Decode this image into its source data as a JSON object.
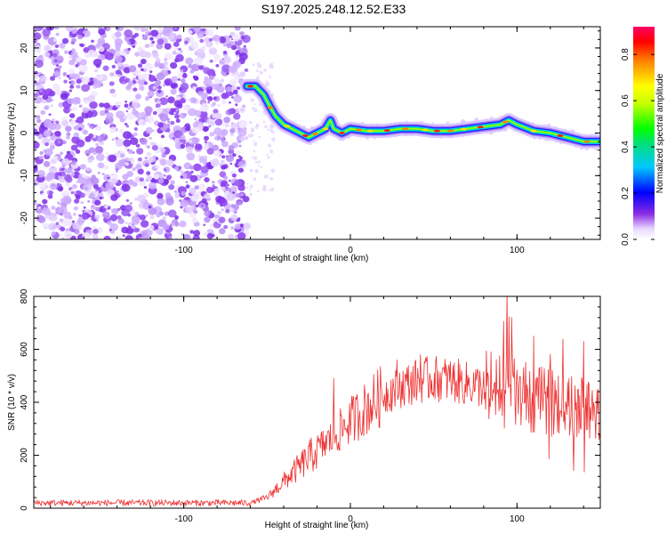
{
  "page": {
    "title": "S197.2025.248.12.52.E33"
  },
  "chart_data": [
    {
      "type": "heatmap",
      "name": "spectrogram",
      "xlabel": "Height of straight line (km)",
      "ylabel": "Frequency (Hz)",
      "xlim": [
        -190,
        150
      ],
      "ylim": [
        -25,
        25
      ],
      "x_ticks": [
        -100,
        0,
        100
      ],
      "y_ticks": [
        -20,
        -10,
        0,
        10,
        20
      ],
      "noise_region_x": [
        -190,
        -62
      ],
      "ridge": {
        "x": [
          -62,
          -57,
          -52,
          -48,
          -45,
          -40,
          -35,
          -30,
          -25,
          -20,
          -15,
          -12,
          -10,
          -5,
          0,
          10,
          20,
          30,
          40,
          50,
          60,
          70,
          80,
          90,
          95,
          100,
          110,
          120,
          130,
          140,
          150
        ],
        "y": [
          11,
          11,
          9,
          6,
          4,
          2,
          1,
          0,
          -1,
          0,
          1,
          3,
          1,
          0,
          1,
          0.5,
          0.5,
          1,
          1,
          0.5,
          0.5,
          1,
          1.5,
          2,
          3,
          2,
          0.5,
          0,
          -1,
          -2,
          -2
        ]
      },
      "colorbar": {
        "label": "Normalized spectral amplitude",
        "ticks": [
          0.0,
          0.2,
          0.4,
          0.6,
          0.8
        ],
        "range": [
          0,
          0.92
        ]
      }
    },
    {
      "type": "line",
      "name": "snr",
      "xlabel": "Height of straight line (km)",
      "ylabel": "SNR (10 * v/v)",
      "xlim": [
        -190,
        150
      ],
      "ylim": [
        0,
        800
      ],
      "x_ticks": [
        -100,
        0,
        100
      ],
      "y_ticks": [
        0,
        200,
        400,
        600,
        800
      ],
      "color": "#ee3030",
      "envelope": {
        "x": [
          -190,
          -60,
          -50,
          -40,
          -30,
          -20,
          -10,
          0,
          10,
          20,
          30,
          40,
          50,
          60,
          70,
          80,
          90,
          100,
          110,
          120,
          130,
          140,
          150
        ],
        "y": [
          20,
          20,
          40,
          100,
          160,
          220,
          270,
          330,
          380,
          430,
          460,
          480,
          490,
          485,
          470,
          460,
          440,
          430,
          410,
          400,
          385,
          375,
          370
        ]
      },
      "spikes": [
        {
          "x": -10,
          "y": 490
        },
        {
          "x": 28,
          "y": 560
        },
        {
          "x": 42,
          "y": 580
        },
        {
          "x": 94,
          "y": 820
        },
        {
          "x": 97,
          "y": 720
        },
        {
          "x": 110,
          "y": 650
        },
        {
          "x": 120,
          "y": 630
        },
        {
          "x": 140,
          "y": 630
        }
      ]
    }
  ]
}
